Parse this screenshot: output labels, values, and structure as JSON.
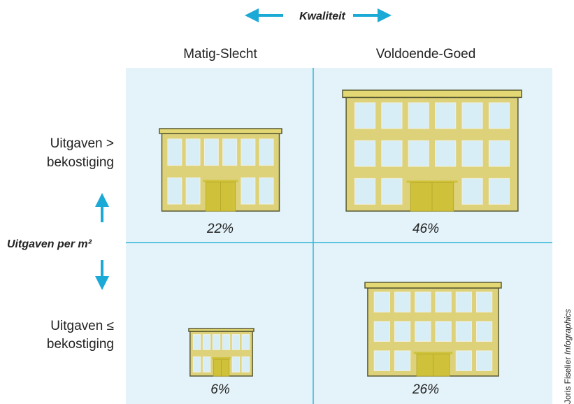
{
  "axes": {
    "horizontal": "Kwaliteit",
    "vertical": "Uitgaven per m²"
  },
  "columns": [
    "Matig-Slecht",
    "Voldoende-Goed"
  ],
  "rows": [
    [
      "Uitgaven >",
      "bekostiging"
    ],
    [
      "Uitgaven ≤",
      "bekostiging"
    ]
  ],
  "cells": [
    [
      "22%",
      "46%"
    ],
    [
      "6%",
      "26%"
    ]
  ],
  "credit": {
    "name": "Joris Fiselier",
    "suffix": "Infographics"
  }
}
